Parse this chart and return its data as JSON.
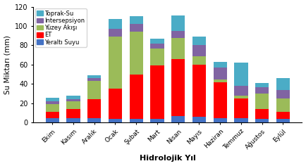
{
  "categories": [
    "Ekim",
    "Kasım",
    "Aralık",
    "Ocak",
    "Şubat",
    "Mart",
    "Nisan",
    "Mayıs",
    "Haziran",
    "Temmuz",
    "Ağustos",
    "Eylül"
  ],
  "Yeraltı Suyu": [
    5,
    5,
    5,
    4,
    4,
    4,
    7,
    6,
    5,
    5,
    4,
    4
  ],
  "ET": [
    6,
    9,
    19,
    31,
    46,
    55,
    59,
    54,
    37,
    20,
    10,
    7
  ],
  "Yüzey Akışı": [
    8,
    8,
    19,
    54,
    44,
    18,
    22,
    9,
    3,
    3,
    16,
    14
  ],
  "Intersepsiyon": [
    3,
    2,
    3,
    8,
    8,
    5,
    7,
    11,
    12,
    10,
    7,
    9
  ],
  "Toprak-Su": [
    4,
    4,
    3,
    10,
    8,
    5,
    16,
    9,
    6,
    24,
    4,
    12
  ],
  "colors": {
    "Yeraltı Suyu": "#4472C4",
    "ET": "#FF0000",
    "Yüzey Akışı": "#9BBB59",
    "Intersepsiyon": "#8064A2",
    "Toprak-Su": "#4BACC6"
  },
  "xlabel": "Hidrolojik Yıl",
  "ylabel": "Su Miktarı (mm)",
  "ylim": [
    0,
    120
  ],
  "yticks": [
    0,
    20,
    40,
    60,
    80,
    100,
    120
  ],
  "legend_order": [
    "Toprak-Su",
    "Intersepsiyon",
    "Yüzey Akışı",
    "ET",
    "Yeraltı Suyu"
  ]
}
